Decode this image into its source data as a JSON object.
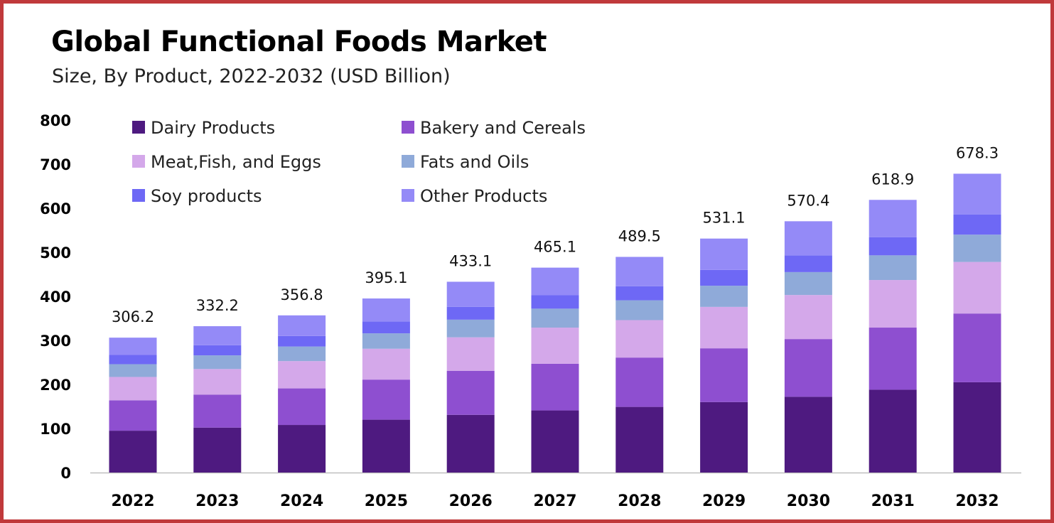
{
  "header": {
    "title": "Global Functional Foods Market",
    "subtitle": "Size, By Product, 2022-2032 (USD Billion)"
  },
  "chart_data": {
    "type": "bar",
    "stacked": true,
    "title": "Global Functional Foods Market",
    "subtitle": "Size, By Product, 2022-2032 (USD Billion)",
    "xlabel": "",
    "ylabel": "",
    "ylim": [
      0,
      800
    ],
    "yticks": [
      0,
      100,
      200,
      300,
      400,
      500,
      600,
      700,
      800
    ],
    "grid": false,
    "legend_position": "top-left",
    "categories": [
      "2022",
      "2023",
      "2024",
      "2025",
      "2026",
      "2027",
      "2028",
      "2029",
      "2030",
      "2031",
      "2032"
    ],
    "totals": [
      "306.2",
      "332.2",
      "356.8",
      "395.1",
      "433.1",
      "465.1",
      "489.5",
      "531.1",
      "570.4",
      "618.9",
      "678.3"
    ],
    "series": [
      {
        "name": "Dairy Products",
        "color": "#4e1a80",
        "values": [
          95,
          102,
          108,
          120,
          131,
          141,
          149,
          160,
          172,
          188,
          205
        ]
      },
      {
        "name": "Bakery and Cereals",
        "color": "#8e4fd0",
        "values": [
          69,
          75,
          83,
          91,
          100,
          106,
          112,
          122,
          131,
          141,
          156
        ]
      },
      {
        "name": "Meat,Fish, and Eggs",
        "color": "#d4a8ea",
        "values": [
          53,
          58,
          62,
          70,
          76,
          82,
          85,
          94,
          100,
          108,
          117
        ]
      },
      {
        "name": "Fats and Oils",
        "color": "#8faad9",
        "values": [
          29,
          31,
          33,
          35,
          40,
          43,
          45,
          48,
          52,
          56,
          62
        ]
      },
      {
        "name": "Soy products",
        "color": "#6e68f5",
        "values": [
          21,
          23,
          24,
          27,
          29,
          31,
          32,
          36,
          38,
          41,
          46
        ]
      },
      {
        "name": "Other Products",
        "color": "#948af7",
        "values": [
          39.2,
          43.2,
          46.8,
          52.1,
          57.1,
          62.1,
          66.5,
          71.1,
          77.4,
          84.9,
          92.3
        ]
      }
    ]
  }
}
